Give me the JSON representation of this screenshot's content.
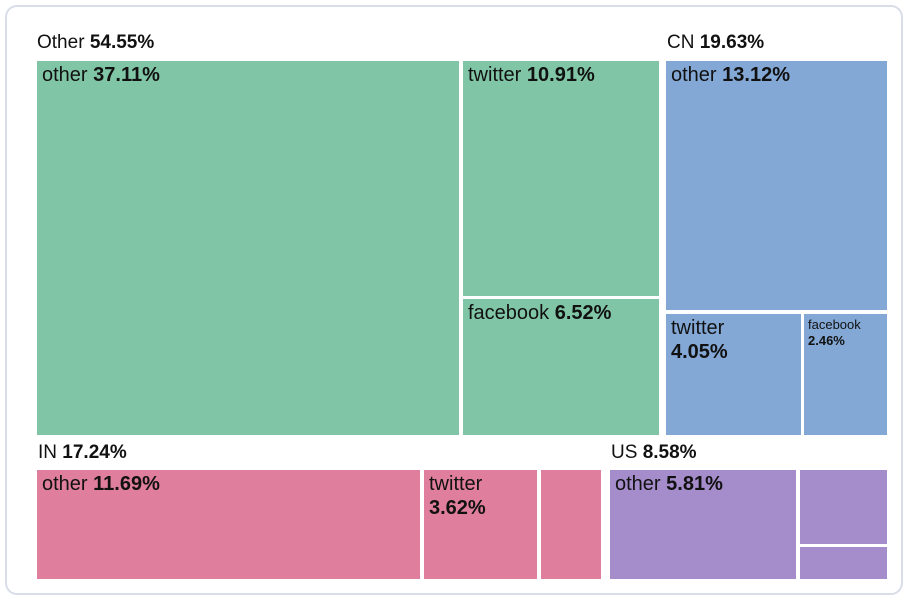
{
  "chart_data": {
    "type": "treemap",
    "title": "",
    "unit": "percent",
    "layout": "grouped treemap, 2 rows: top row [Other, CN], bottom row [IN, US], group headers above blocks",
    "groups": [
      {
        "header": {
          "name": "Other",
          "value": "54.55%"
        },
        "pct": 54.55,
        "color": "#80C6A6",
        "nodes": [
          {
            "name": "other",
            "value": "37.11%",
            "pct": 37.11,
            "label_visible": true
          },
          {
            "name": "twitter",
            "value": "10.91%",
            "pct": 10.91,
            "label_visible": true
          },
          {
            "name": "facebook",
            "value": "6.52%",
            "pct": 6.52,
            "label_visible": true
          }
        ]
      },
      {
        "header": {
          "name": "CN",
          "value": "19.63%"
        },
        "pct": 19.63,
        "color": "#83A8D6",
        "nodes": [
          {
            "name": "other",
            "value": "13.12%",
            "pct": 13.12,
            "label_visible": true
          },
          {
            "name": "twitter",
            "value": "4.05%",
            "pct": 4.05,
            "label_visible": true
          },
          {
            "name": "facebook",
            "value": "2.46%",
            "pct": 2.46,
            "label_visible": true
          }
        ]
      },
      {
        "header": {
          "name": "IN",
          "value": "17.24%"
        },
        "pct": 17.24,
        "color": "#DF7E9D",
        "nodes": [
          {
            "name": "other",
            "value": "11.69%",
            "pct": 11.69,
            "label_visible": true
          },
          {
            "name": "twitter",
            "value": "3.62%",
            "pct": 3.62,
            "label_visible": true
          },
          {
            "name": "",
            "value": "",
            "label_visible": false
          }
        ]
      },
      {
        "header": {
          "name": "US",
          "value": "8.58%"
        },
        "pct": 8.58,
        "color": "#A58CCB",
        "nodes": [
          {
            "name": "other",
            "value": "5.81%",
            "pct": 5.81,
            "label_visible": true
          },
          {
            "name": "",
            "value": "",
            "label_visible": false
          },
          {
            "name": "",
            "value": "",
            "label_visible": false
          }
        ]
      }
    ]
  },
  "colors": {
    "card_border": "#d9dde9",
    "background": "#ffffff",
    "text": "#111111"
  }
}
